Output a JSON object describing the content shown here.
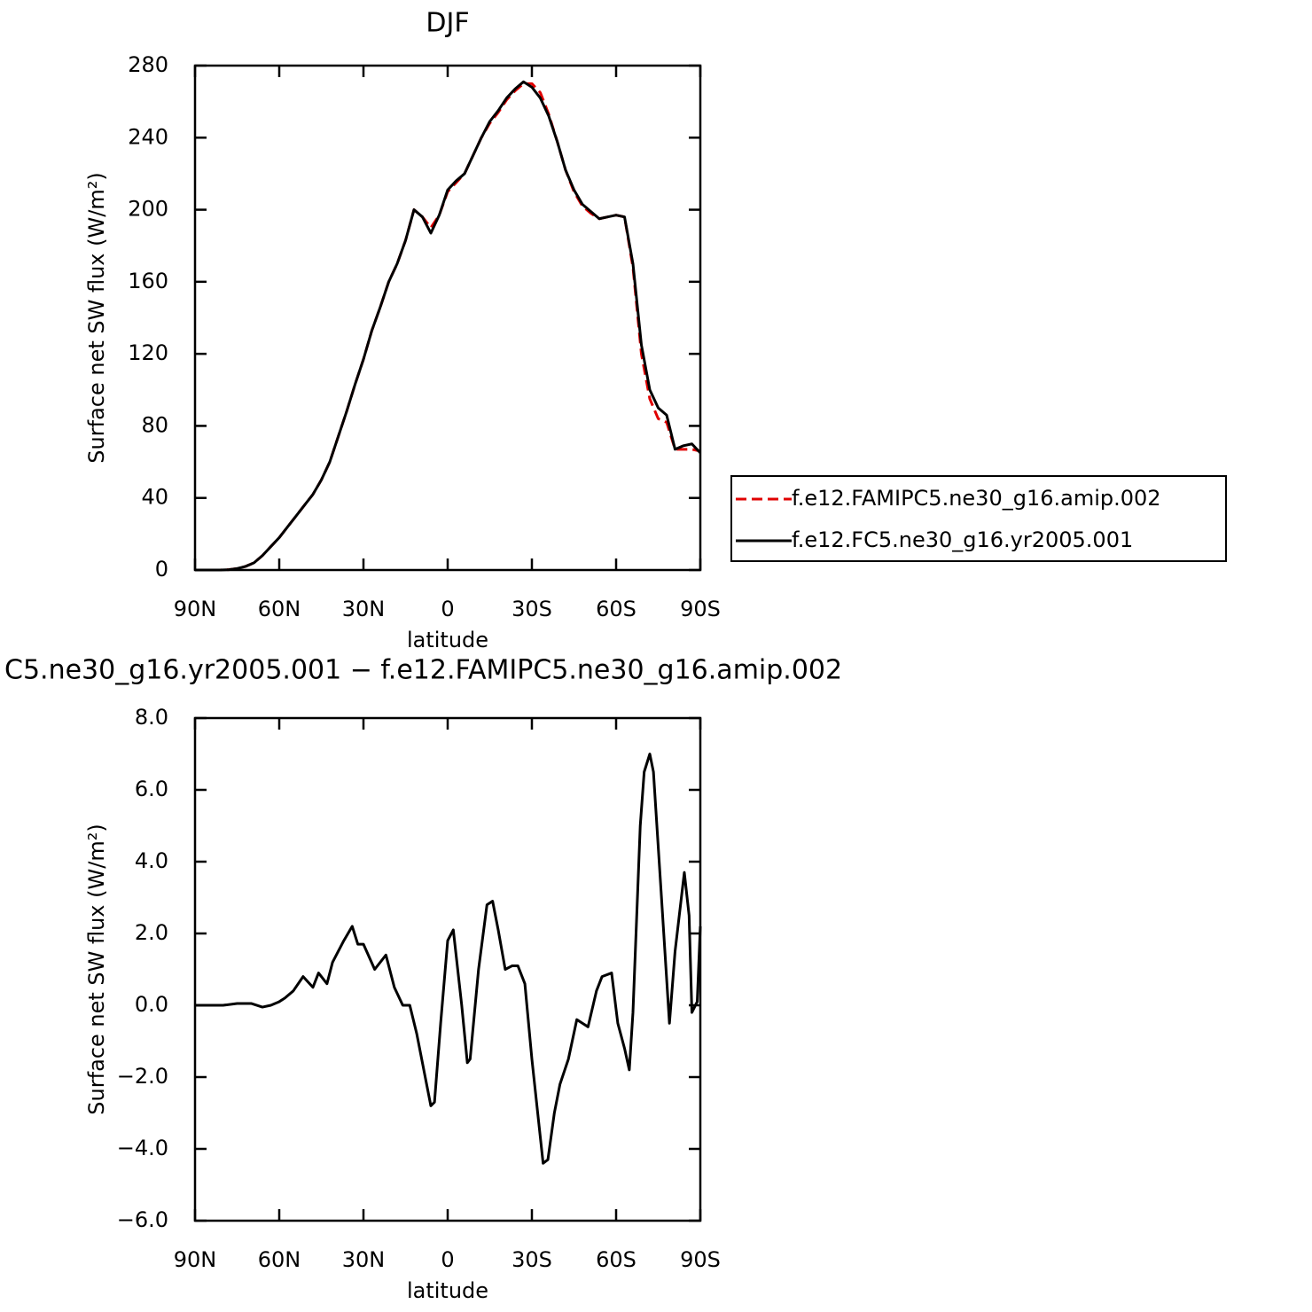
{
  "chart_data": [
    {
      "type": "line",
      "title": "DJF",
      "xlabel": "latitude",
      "ylabel": "Surface net SW flux (W/m²)",
      "x": [
        90,
        87,
        84,
        81,
        78,
        75,
        72,
        69,
        66,
        63,
        60,
        57,
        54,
        51,
        48,
        45,
        42,
        39,
        36,
        33,
        30,
        27,
        24,
        21,
        18,
        15,
        12,
        9,
        6,
        3,
        0,
        -3,
        -6,
        -9,
        -12,
        -15,
        -18,
        -21,
        -24,
        -27,
        -30,
        -33,
        -36,
        -39,
        -42,
        -45,
        -48,
        -51,
        -54,
        -57,
        -60,
        -63,
        -66,
        -69,
        -72,
        -75,
        -78,
        -81,
        -84,
        -87,
        -90
      ],
      "series": [
        {
          "name": "f.e12.FAMIPC5.ne30_g16.amip.002",
          "color": "#e00000",
          "dash": true,
          "values": [
            0,
            0,
            0,
            0,
            0.2,
            0.8,
            2,
            4,
            8,
            13,
            18,
            24,
            30,
            36,
            42,
            50,
            60,
            74,
            88,
            103,
            117,
            133,
            146,
            160,
            170,
            183,
            200,
            196,
            190,
            197,
            210,
            215,
            220,
            230,
            240,
            248,
            254,
            261,
            266,
            270,
            270,
            265,
            253,
            238,
            222,
            210,
            202,
            198,
            195,
            196,
            197,
            196,
            168,
            120,
            95,
            84,
            82,
            67,
            67,
            67,
            66
          ]
        },
        {
          "name": "f.e12.FC5.ne30_g16.yr2005.001",
          "color": "#000000",
          "dash": false,
          "values": [
            0,
            0,
            0,
            0,
            0.2,
            0.8,
            2,
            4,
            8,
            13,
            18,
            24,
            30,
            36,
            42,
            50,
            60,
            74,
            88,
            103,
            117,
            133,
            146,
            160,
            170,
            183,
            200,
            196,
            187,
            197,
            211,
            216,
            220,
            230,
            240,
            249,
            255,
            262,
            267,
            271,
            268,
            262,
            252,
            238,
            222,
            211,
            203,
            199,
            195,
            196,
            197,
            196,
            170,
            125,
            100,
            90,
            86,
            67,
            69,
            70,
            65
          ]
        }
      ],
      "xlim": [
        90,
        -90
      ],
      "xticks": [
        {
          "value": 90,
          "label": "90N"
        },
        {
          "value": 60,
          "label": "60N"
        },
        {
          "value": 30,
          "label": "30N"
        },
        0,
        {
          "value": -30,
          "label": "30S"
        },
        {
          "value": -60,
          "label": "60S"
        },
        {
          "value": -90,
          "label": "90S"
        }
      ],
      "ylim": [
        0,
        280
      ],
      "yticks": [
        0,
        40,
        80,
        120,
        160,
        200,
        240,
        280
      ],
      "legend": "right"
    },
    {
      "type": "line",
      "title": "C5.ne30_g16.yr2005.001 − f.e12.FAMIPC5.ne30_g16.amip.002",
      "xlabel": "latitude",
      "ylabel": "Surface net SW flux (W/m²)",
      "x": [
        90,
        80,
        75,
        70,
        66,
        63,
        60,
        58,
        55,
        51.5,
        48,
        46,
        43,
        41,
        37,
        34,
        32,
        30,
        26,
        22,
        19,
        16,
        13.5,
        11,
        6,
        4.7,
        2.5,
        0,
        -2,
        -5,
        -7,
        -8,
        -11,
        -14,
        -16,
        -18,
        -20.5,
        -23,
        -25,
        -27.5,
        -30,
        -34,
        -35.7,
        -38,
        -40,
        -43,
        -46,
        -48,
        -50,
        -53,
        -55,
        -58.4,
        -60.6,
        -63,
        -64.7,
        -66,
        -68.6,
        -70,
        -72,
        -73.3,
        -76,
        -79,
        -81,
        -84.3,
        -86,
        -87,
        -88.9,
        -90
      ],
      "series": [
        {
          "color": "#000000",
          "dash": false,
          "values": [
            0,
            0,
            0.05,
            0.05,
            -0.05,
            0,
            0.1,
            0.2,
            0.4,
            0.8,
            0.5,
            0.9,
            0.6,
            1.2,
            1.8,
            2.2,
            1.7,
            1.7,
            1.0,
            1.4,
            0.5,
            0.0,
            0.0,
            -0.8,
            -2.8,
            -2.7,
            -0.5,
            1.8,
            2.1,
            0.0,
            -1.6,
            -1.5,
            1.0,
            2.8,
            2.9,
            2.1,
            1.0,
            1.1,
            1.1,
            0.6,
            -1.5,
            -4.4,
            -4.3,
            -3.0,
            -2.2,
            -1.5,
            -0.4,
            -0.5,
            -0.6,
            0.4,
            0.8,
            0.9,
            -0.5,
            -1.2,
            -1.8,
            -0.2,
            5.0,
            6.5,
            7.0,
            6.5,
            3.2,
            -0.5,
            1.5,
            3.7,
            2.5,
            -0.2,
            0.1,
            2.2
          ]
        }
      ],
      "xlim": [
        90,
        -90
      ],
      "xticks": [
        {
          "value": 90,
          "label": "90N"
        },
        {
          "value": 60,
          "label": "60N"
        },
        {
          "value": 30,
          "label": "30N"
        },
        0,
        {
          "value": -30,
          "label": "30S"
        },
        {
          "value": -60,
          "label": "60S"
        },
        {
          "value": -90,
          "label": "90S"
        }
      ],
      "ylim": [
        -6,
        8
      ],
      "yticks": [
        {
          "value": -6,
          "label": "−6.0"
        },
        {
          "value": -4,
          "label": "−4.0"
        },
        {
          "value": -2,
          "label": "−2.0"
        },
        {
          "value": 0,
          "label": "0.0"
        },
        {
          "value": 2,
          "label": "2.0"
        },
        {
          "value": 4,
          "label": "4.0"
        },
        {
          "value": 6,
          "label": "6.0"
        },
        {
          "value": 8,
          "label": "8.0"
        }
      ]
    }
  ]
}
